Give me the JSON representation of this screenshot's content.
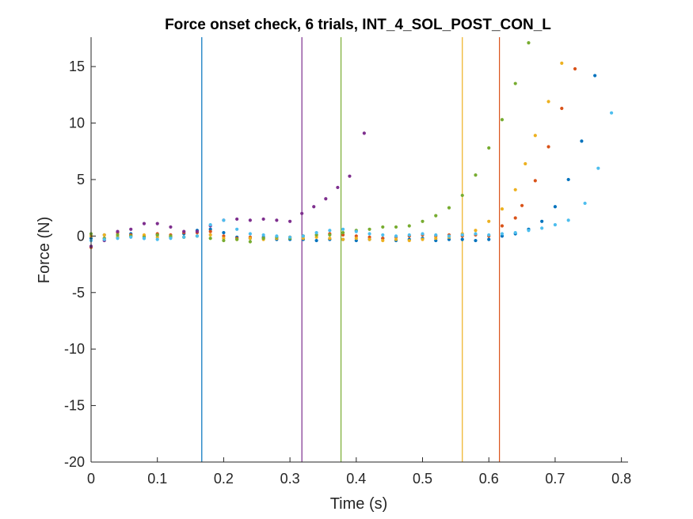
{
  "chart_data": {
    "type": "scatter",
    "title": "Force onset check, 6 trials, INT_4_SOL_POST_CON_L",
    "xlabel": "Time (s)",
    "ylabel": "Force (N)",
    "xlim": [
      0,
      0.81
    ],
    "ylim": [
      -20,
      17.6
    ],
    "xticks": [
      0,
      0.1,
      0.2,
      0.3,
      0.4,
      0.5,
      0.6,
      0.7,
      0.8
    ],
    "xtick_labels": [
      "0",
      "0.1",
      "0.2",
      "0.3",
      "0.4",
      "0.5",
      "0.6",
      "0.7",
      "0.8"
    ],
    "yticks": [
      -20,
      -15,
      -10,
      -5,
      0,
      5,
      10,
      15
    ],
    "ytick_labels": [
      "-20",
      "-15",
      "-10",
      "-5",
      "0",
      "5",
      "10",
      "15"
    ],
    "grid": false,
    "legend": "none",
    "onset_lines": [
      {
        "x": 0.167,
        "color": "#0072BD"
      },
      {
        "x": 0.318,
        "color": "#7E2F8E"
      },
      {
        "x": 0.377,
        "color": "#77AC30"
      },
      {
        "x": 0.56,
        "color": "#EDB120"
      },
      {
        "x": 0.616,
        "color": "#D95319"
      }
    ],
    "series": [
      {
        "color": "#0072BD",
        "x": [
          0,
          0.02,
          0.04,
          0.06,
          0.08,
          0.1,
          0.12,
          0.14,
          0.16,
          0.18,
          0.2,
          0.22,
          0.24,
          0.26,
          0.28,
          0.3,
          0.32,
          0.34,
          0.36,
          0.38,
          0.4,
          0.42,
          0.44,
          0.46,
          0.48,
          0.5,
          0.52,
          0.54,
          0.56,
          0.58,
          0.6,
          0.62,
          0.64,
          0.66,
          0.68,
          0.7,
          0.72,
          0.74,
          0.76
        ],
        "y": [
          -0.2,
          0.1,
          -0.1,
          0.2,
          -0.2,
          0.1,
          -0.1,
          0.2,
          0.5,
          0.6,
          0.3,
          -0.1,
          -0.2,
          -0.1,
          -0.3,
          -0.3,
          -0.3,
          -0.4,
          -0.3,
          -0.3,
          -0.4,
          -0.3,
          -0.2,
          -0.4,
          -0.3,
          -0.2,
          -0.4,
          -0.3,
          -0.3,
          -0.4,
          -0.3,
          0.0,
          0.2,
          0.6,
          1.3,
          2.6,
          5.0,
          8.4,
          14.2
        ]
      },
      {
        "color": "#D95319",
        "x": [
          0,
          0.02,
          0.04,
          0.06,
          0.08,
          0.1,
          0.12,
          0.14,
          0.16,
          0.18,
          0.2,
          0.22,
          0.24,
          0.26,
          0.28,
          0.3,
          0.32,
          0.34,
          0.36,
          0.38,
          0.4,
          0.42,
          0.44,
          0.46,
          0.48,
          0.5,
          0.52,
          0.54,
          0.56,
          0.58,
          0.6,
          0.62,
          0.64,
          0.65,
          0.67,
          0.69,
          0.71,
          0.73
        ],
        "y": [
          -1.0,
          -0.2,
          0.3,
          0.1,
          0.0,
          0.2,
          0.1,
          0.3,
          0.3,
          0.4,
          0.0,
          -0.2,
          -0.1,
          -0.2,
          -0.2,
          -0.1,
          0.0,
          0.1,
          0.2,
          0.1,
          0.0,
          -0.1,
          -0.2,
          -0.1,
          0.0,
          0.1,
          0.0,
          0.1,
          0.0,
          0.1,
          0.0,
          0.9,
          1.6,
          2.7,
          4.9,
          7.9,
          11.3,
          14.8
        ]
      },
      {
        "color": "#EDB120",
        "x": [
          0,
          0.02,
          0.04,
          0.06,
          0.08,
          0.1,
          0.12,
          0.14,
          0.16,
          0.18,
          0.2,
          0.22,
          0.24,
          0.26,
          0.28,
          0.3,
          0.32,
          0.34,
          0.36,
          0.38,
          0.4,
          0.42,
          0.44,
          0.46,
          0.48,
          0.5,
          0.52,
          0.54,
          0.56,
          0.58,
          0.6,
          0.62,
          0.64,
          0.655,
          0.67,
          0.69,
          0.71
        ],
        "y": [
          0.0,
          0.1,
          -0.1,
          0.0,
          0.1,
          -0.1,
          0.0,
          -0.1,
          0.0,
          0.1,
          -0.2,
          -0.3,
          -0.2,
          -0.3,
          -0.2,
          -0.1,
          -0.2,
          -0.1,
          -0.2,
          -0.3,
          -0.2,
          -0.3,
          -0.4,
          -0.3,
          -0.4,
          -0.3,
          -0.2,
          -0.1,
          0.2,
          0.5,
          1.3,
          2.4,
          4.1,
          6.4,
          8.9,
          11.9,
          15.3
        ]
      },
      {
        "color": "#7E2F8E",
        "x": [
          0,
          0.02,
          0.04,
          0.06,
          0.08,
          0.1,
          0.12,
          0.14,
          0.16,
          0.18,
          0.2,
          0.22,
          0.24,
          0.26,
          0.28,
          0.3,
          0.318,
          0.336,
          0.354,
          0.372,
          0.39,
          0.412
        ],
        "y": [
          -0.9,
          -0.4,
          0.4,
          0.6,
          1.1,
          1.1,
          0.8,
          0.4,
          0.4,
          0.9,
          1.4,
          1.5,
          1.4,
          1.5,
          1.4,
          1.3,
          2.0,
          2.6,
          3.3,
          4.3,
          5.3,
          9.1
        ]
      },
      {
        "color": "#77AC30",
        "x": [
          0,
          0.02,
          0.04,
          0.06,
          0.08,
          0.1,
          0.12,
          0.14,
          0.16,
          0.18,
          0.2,
          0.22,
          0.24,
          0.26,
          0.28,
          0.3,
          0.32,
          0.34,
          0.36,
          0.38,
          0.4,
          0.42,
          0.44,
          0.46,
          0.48,
          0.5,
          0.52,
          0.54,
          0.56,
          0.58,
          0.6,
          0.62,
          0.64,
          0.66
        ],
        "y": [
          0.2,
          -0.2,
          0.1,
          0.0,
          -0.1,
          0.1,
          0.0,
          -0.1,
          0.0,
          -0.2,
          -0.4,
          -0.3,
          -0.5,
          -0.2,
          -0.1,
          -0.2,
          0.0,
          0.1,
          0.1,
          0.3,
          0.5,
          0.6,
          0.8,
          0.8,
          0.9,
          1.3,
          1.8,
          2.5,
          3.6,
          5.4,
          7.8,
          10.3,
          13.5,
          17.1
        ]
      },
      {
        "color": "#4DBEEE",
        "x": [
          0,
          0.02,
          0.04,
          0.06,
          0.08,
          0.1,
          0.12,
          0.14,
          0.16,
          0.18,
          0.2,
          0.22,
          0.24,
          0.26,
          0.28,
          0.3,
          0.32,
          0.34,
          0.36,
          0.38,
          0.4,
          0.42,
          0.44,
          0.46,
          0.48,
          0.5,
          0.52,
          0.54,
          0.56,
          0.58,
          0.6,
          0.62,
          0.64,
          0.66,
          0.68,
          0.7,
          0.72,
          0.745,
          0.765,
          0.785
        ],
        "y": [
          -0.4,
          -0.3,
          -0.2,
          -0.1,
          -0.2,
          -0.3,
          -0.2,
          -0.1,
          0.0,
          1.0,
          1.4,
          0.6,
          0.2,
          0.1,
          0.0,
          -0.1,
          0.0,
          0.3,
          0.5,
          0.6,
          0.4,
          0.2,
          0.1,
          0.0,
          0.1,
          0.2,
          0.1,
          0.0,
          0.1,
          0.2,
          0.1,
          0.2,
          0.3,
          0.5,
          0.7,
          1.0,
          1.4,
          2.9,
          6.0,
          10.9
        ]
      }
    ]
  }
}
